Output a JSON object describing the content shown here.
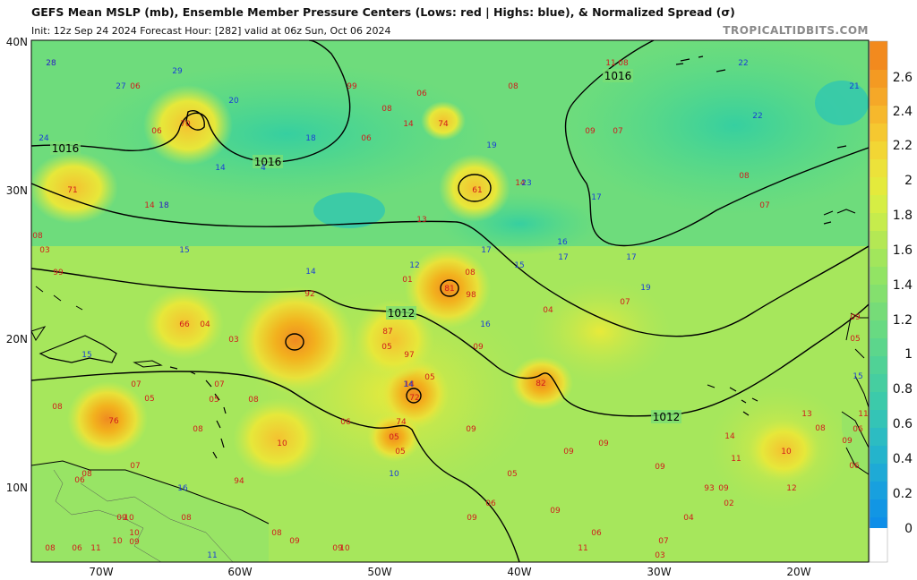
{
  "header": {
    "title": "GEFS Mean MSLP (mb), Ensemble Member Pressure Centers (Lows: red | Highs: blue), & Normalized Spread (σ)",
    "subtitle": "Init: 12z Sep 24 2024   Forecast Hour: [282]   valid at 06z Sun, Oct 06 2024",
    "brand": "TROPICALTIDBITS.COM"
  },
  "colors": {
    "low": "#d01c1c",
    "high": "#1a3fd6",
    "isobar": "#000000",
    "coast": "#000000"
  },
  "axes": {
    "lat_labels": [
      "40N",
      "30N",
      "20N",
      "10N"
    ],
    "lon_labels": [
      "70W",
      "60W",
      "50W",
      "40W",
      "30W",
      "20W"
    ]
  },
  "colorbar": {
    "ticks": [
      "2.6",
      "2.4",
      "2.2",
      "2",
      "1.8",
      "1.6",
      "1.4",
      "1.2",
      "1",
      "0.8",
      "0.6",
      "0.4",
      "0.2",
      "0"
    ]
  },
  "isobars": [
    {
      "label": "1016"
    },
    {
      "label": "1016"
    },
    {
      "label": "1016"
    },
    {
      "label": "1012"
    },
    {
      "label": "1012"
    }
  ],
  "lows": [
    "28",
    "06",
    "70",
    "71",
    "14",
    "18",
    "08",
    "03",
    "99",
    "99",
    "08",
    "14",
    "74",
    "61",
    "14",
    "13",
    "08",
    "01",
    "81",
    "98",
    "92",
    "66",
    "04",
    "03",
    "87",
    "05",
    "97",
    "05",
    "14",
    "72",
    "82",
    "05",
    "04",
    "07",
    "09",
    "07",
    "05",
    "07",
    "05",
    "08",
    "08",
    "76",
    "08",
    "07",
    "08",
    "06",
    "94",
    "10",
    "06",
    "74",
    "05",
    "09",
    "09",
    "09",
    "05",
    "06",
    "08",
    "10",
    "09",
    "08",
    "09",
    "10",
    "09",
    "10",
    "09",
    "10",
    "06",
    "11",
    "09",
    "11",
    "09",
    "06",
    "07",
    "03",
    "09",
    "04",
    "93",
    "02",
    "14",
    "11",
    "12",
    "13",
    "08",
    "10",
    "09",
    "08",
    "11",
    "08",
    "09",
    "07",
    "06",
    "06",
    "08",
    "07",
    "06",
    "06",
    "05",
    "09",
    "09",
    "06",
    "11",
    "08"
  ],
  "highs": [
    "28",
    "27",
    "29",
    "20",
    "24",
    "14",
    "4",
    "18",
    "19",
    "23",
    "17",
    "16",
    "17",
    "17",
    "15",
    "12",
    "15",
    "16",
    "14",
    "18",
    "22",
    "21",
    "22",
    "19",
    "15",
    "15",
    "14",
    "11",
    "10"
  ],
  "extra_labels": [
    "17",
    "16"
  ]
}
